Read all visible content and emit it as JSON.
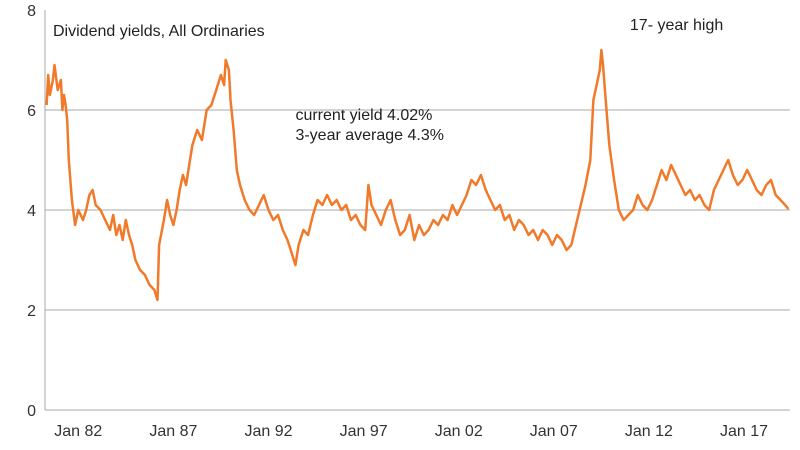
{
  "chart_data": {
    "type": "line",
    "title": "Dividend yields, All Ordinaries",
    "xlabel": "",
    "ylabel": "",
    "ylim": [
      0,
      8
    ],
    "xlim": [
      "1980-04",
      "2019-06"
    ],
    "yticks": [
      "0",
      "2",
      "4",
      "6",
      "8"
    ],
    "xticks": [
      {
        "date": "1982-01",
        "label": "Jan 82"
      },
      {
        "date": "1987-01",
        "label": "Jan 87"
      },
      {
        "date": "1992-01",
        "label": "Jan 92"
      },
      {
        "date": "1997-01",
        "label": "Jan 97"
      },
      {
        "date": "2002-01",
        "label": "Jan 02"
      },
      {
        "date": "2007-01",
        "label": "Jan 07"
      },
      {
        "date": "2012-01",
        "label": "Jan 12"
      },
      {
        "date": "2017-01",
        "label": "Jan 17"
      }
    ],
    "gridlines_y": [
      2,
      4,
      6
    ],
    "annotations": [
      {
        "text": "17- year high",
        "at": [
          "2011-01",
          7.6
        ]
      },
      {
        "text": "current yield 4.02%",
        "at": [
          "1993-06",
          5.8
        ]
      },
      {
        "text": "3-year average 4.3%",
        "at": [
          "1993-06",
          5.4
        ]
      }
    ],
    "series": [
      {
        "color": "#f07a2a",
        "points": [
          [
            "1980-05",
            6.1
          ],
          [
            "1980-06",
            6.7
          ],
          [
            "1980-07",
            6.3
          ],
          [
            "1980-09",
            6.6
          ],
          [
            "1980-10",
            6.9
          ],
          [
            "1980-12",
            6.4
          ],
          [
            "1981-02",
            6.6
          ],
          [
            "1981-03",
            6.0
          ],
          [
            "1981-04",
            6.3
          ],
          [
            "1981-05",
            6.1
          ],
          [
            "1981-06",
            5.8
          ],
          [
            "1981-07",
            5.0
          ],
          [
            "1981-09",
            4.2
          ],
          [
            "1981-11",
            3.7
          ],
          [
            "1982-01",
            4.0
          ],
          [
            "1982-04",
            3.8
          ],
          [
            "1982-06",
            4.0
          ],
          [
            "1982-08",
            4.3
          ],
          [
            "1982-10",
            4.4
          ],
          [
            "1982-12",
            4.1
          ],
          [
            "1983-03",
            4.0
          ],
          [
            "1983-06",
            3.8
          ],
          [
            "1983-09",
            3.6
          ],
          [
            "1983-11",
            3.9
          ],
          [
            "1984-01",
            3.5
          ],
          [
            "1984-03",
            3.7
          ],
          [
            "1984-05",
            3.4
          ],
          [
            "1984-07",
            3.8
          ],
          [
            "1984-09",
            3.5
          ],
          [
            "1984-11",
            3.3
          ],
          [
            "1985-01",
            3.0
          ],
          [
            "1985-04",
            2.8
          ],
          [
            "1985-07",
            2.7
          ],
          [
            "1985-10",
            2.5
          ],
          [
            "1986-01",
            2.4
          ],
          [
            "1986-03",
            2.2
          ],
          [
            "1986-04",
            3.3
          ],
          [
            "1986-07",
            3.8
          ],
          [
            "1986-09",
            4.2
          ],
          [
            "1986-11",
            3.9
          ],
          [
            "1987-01",
            3.7
          ],
          [
            "1987-03",
            4.0
          ],
          [
            "1987-05",
            4.4
          ],
          [
            "1987-07",
            4.7
          ],
          [
            "1987-09",
            4.5
          ],
          [
            "1987-11",
            4.9
          ],
          [
            "1988-01",
            5.3
          ],
          [
            "1988-04",
            5.6
          ],
          [
            "1988-07",
            5.4
          ],
          [
            "1988-10",
            6.0
          ],
          [
            "1989-01",
            6.1
          ],
          [
            "1989-04",
            6.4
          ],
          [
            "1989-07",
            6.7
          ],
          [
            "1989-09",
            6.5
          ],
          [
            "1989-10",
            7.0
          ],
          [
            "1989-12",
            6.8
          ],
          [
            "1990-01",
            6.2
          ],
          [
            "1990-03",
            5.6
          ],
          [
            "1990-05",
            4.8
          ],
          [
            "1990-07",
            4.5
          ],
          [
            "1990-10",
            4.2
          ],
          [
            "1991-01",
            4.0
          ],
          [
            "1991-04",
            3.9
          ],
          [
            "1991-07",
            4.1
          ],
          [
            "1991-10",
            4.3
          ],
          [
            "1992-01",
            4.0
          ],
          [
            "1992-04",
            3.8
          ],
          [
            "1992-07",
            3.9
          ],
          [
            "1992-10",
            3.6
          ],
          [
            "1993-01",
            3.4
          ],
          [
            "1993-04",
            3.1
          ],
          [
            "1993-06",
            2.9
          ],
          [
            "1993-08",
            3.3
          ],
          [
            "1993-11",
            3.6
          ],
          [
            "1994-02",
            3.5
          ],
          [
            "1994-05",
            3.9
          ],
          [
            "1994-08",
            4.2
          ],
          [
            "1994-11",
            4.1
          ],
          [
            "1995-02",
            4.3
          ],
          [
            "1995-05",
            4.1
          ],
          [
            "1995-08",
            4.2
          ],
          [
            "1995-11",
            4.0
          ],
          [
            "1996-02",
            4.1
          ],
          [
            "1996-05",
            3.8
          ],
          [
            "1996-08",
            3.9
          ],
          [
            "1996-11",
            3.7
          ],
          [
            "1997-02",
            3.6
          ],
          [
            "1997-04",
            4.5
          ],
          [
            "1997-06",
            4.1
          ],
          [
            "1997-09",
            3.9
          ],
          [
            "1997-12",
            3.7
          ],
          [
            "1998-03",
            4.0
          ],
          [
            "1998-06",
            4.2
          ],
          [
            "1998-09",
            3.8
          ],
          [
            "1998-12",
            3.5
          ],
          [
            "1999-03",
            3.6
          ],
          [
            "1999-06",
            3.9
          ],
          [
            "1999-09",
            3.4
          ],
          [
            "1999-12",
            3.7
          ],
          [
            "2000-03",
            3.5
          ],
          [
            "2000-06",
            3.6
          ],
          [
            "2000-09",
            3.8
          ],
          [
            "2000-12",
            3.7
          ],
          [
            "2001-03",
            3.9
          ],
          [
            "2001-06",
            3.8
          ],
          [
            "2001-09",
            4.1
          ],
          [
            "2001-12",
            3.9
          ],
          [
            "2002-03",
            4.1
          ],
          [
            "2002-06",
            4.3
          ],
          [
            "2002-09",
            4.6
          ],
          [
            "2002-12",
            4.5
          ],
          [
            "2003-03",
            4.7
          ],
          [
            "2003-06",
            4.4
          ],
          [
            "2003-09",
            4.2
          ],
          [
            "2003-12",
            4.0
          ],
          [
            "2004-03",
            4.1
          ],
          [
            "2004-06",
            3.8
          ],
          [
            "2004-09",
            3.9
          ],
          [
            "2004-12",
            3.6
          ],
          [
            "2005-03",
            3.8
          ],
          [
            "2005-06",
            3.7
          ],
          [
            "2005-09",
            3.5
          ],
          [
            "2005-12",
            3.6
          ],
          [
            "2006-03",
            3.4
          ],
          [
            "2006-06",
            3.6
          ],
          [
            "2006-09",
            3.5
          ],
          [
            "2006-12",
            3.3
          ],
          [
            "2007-03",
            3.5
          ],
          [
            "2007-06",
            3.4
          ],
          [
            "2007-09",
            3.2
          ],
          [
            "2007-12",
            3.3
          ],
          [
            "2008-03",
            3.7
          ],
          [
            "2008-06",
            4.1
          ],
          [
            "2008-09",
            4.5
          ],
          [
            "2008-12",
            5.0
          ],
          [
            "2009-02",
            6.2
          ],
          [
            "2009-04",
            6.5
          ],
          [
            "2009-06",
            6.8
          ],
          [
            "2009-07",
            7.2
          ],
          [
            "2009-08",
            6.9
          ],
          [
            "2009-10",
            6.1
          ],
          [
            "2009-12",
            5.3
          ],
          [
            "2010-03",
            4.6
          ],
          [
            "2010-06",
            4.0
          ],
          [
            "2010-09",
            3.8
          ],
          [
            "2010-12",
            3.9
          ],
          [
            "2011-03",
            4.0
          ],
          [
            "2011-06",
            4.3
          ],
          [
            "2011-09",
            4.1
          ],
          [
            "2011-12",
            4.0
          ],
          [
            "2012-03",
            4.2
          ],
          [
            "2012-06",
            4.5
          ],
          [
            "2012-09",
            4.8
          ],
          [
            "2012-12",
            4.6
          ],
          [
            "2013-03",
            4.9
          ],
          [
            "2013-06",
            4.7
          ],
          [
            "2013-09",
            4.5
          ],
          [
            "2013-12",
            4.3
          ],
          [
            "2014-03",
            4.4
          ],
          [
            "2014-06",
            4.2
          ],
          [
            "2014-09",
            4.3
          ],
          [
            "2014-12",
            4.1
          ],
          [
            "2015-03",
            4.0
          ],
          [
            "2015-06",
            4.4
          ],
          [
            "2015-09",
            4.6
          ],
          [
            "2015-12",
            4.8
          ],
          [
            "2016-03",
            5.0
          ],
          [
            "2016-06",
            4.7
          ],
          [
            "2016-09",
            4.5
          ],
          [
            "2016-12",
            4.6
          ],
          [
            "2017-03",
            4.8
          ],
          [
            "2017-06",
            4.6
          ],
          [
            "2017-09",
            4.4
          ],
          [
            "2017-12",
            4.3
          ],
          [
            "2018-03",
            4.5
          ],
          [
            "2018-06",
            4.6
          ],
          [
            "2018-09",
            4.3
          ],
          [
            "2018-12",
            4.2
          ],
          [
            "2019-03",
            4.1
          ],
          [
            "2019-05",
            4.02
          ]
        ]
      }
    ]
  }
}
